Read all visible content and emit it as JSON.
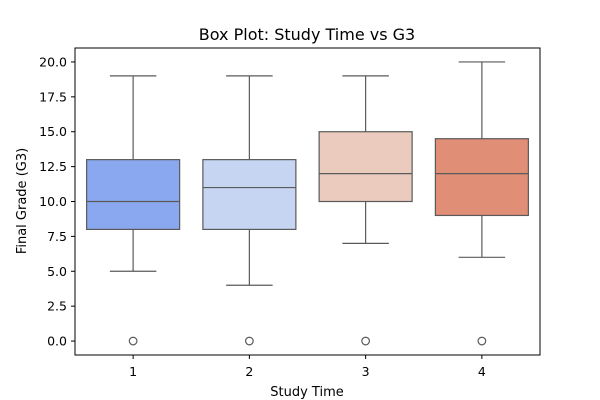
{
  "chart_data": {
    "type": "box",
    "title": "Box Plot: Study Time vs G3",
    "xlabel": "Study Time",
    "ylabel": "Final Grade (G3)",
    "ylim": [
      -1.0,
      21.0
    ],
    "yticks": [
      "0.0",
      "2.5",
      "5.0",
      "7.5",
      "10.0",
      "12.5",
      "15.0",
      "17.5",
      "20.0"
    ],
    "grid": false,
    "categories": [
      "1",
      "2",
      "3",
      "4"
    ],
    "boxes": [
      {
        "category": "1",
        "whisker_low": 5,
        "q1": 8,
        "median": 10,
        "q3": 13,
        "whisker_high": 19,
        "outliers": [
          0
        ],
        "color": "#8aa8ef"
      },
      {
        "category": "2",
        "whisker_low": 4,
        "q1": 8,
        "median": 11,
        "q3": 13,
        "whisker_high": 19,
        "outliers": [
          0
        ],
        "color": "#c6d5f1"
      },
      {
        "category": "3",
        "whisker_low": 7,
        "q1": 10,
        "median": 12,
        "q3": 15,
        "whisker_high": 19,
        "outliers": [
          0
        ],
        "color": "#eacbbd"
      },
      {
        "category": "4",
        "whisker_low": 6,
        "q1": 9,
        "median": 12,
        "q3": 14.5,
        "whisker_high": 20,
        "outliers": [
          0
        ],
        "color": "#e08e76"
      }
    ]
  }
}
